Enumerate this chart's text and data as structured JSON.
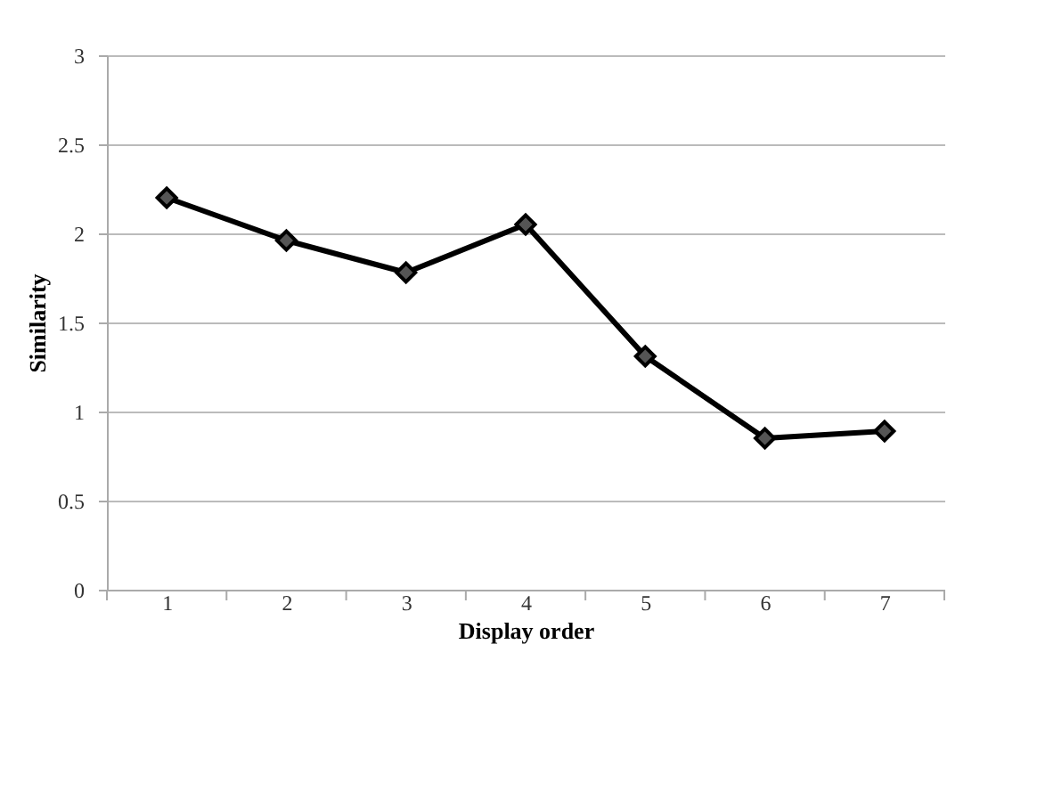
{
  "chart_data": {
    "type": "line",
    "xlabel": "Display order",
    "ylabel": "Similarity",
    "categories": [
      "1",
      "2",
      "3",
      "4",
      "5",
      "6",
      "7"
    ],
    "series": [
      {
        "color": "#000000",
        "values": [
          2.2,
          1.96,
          1.78,
          2.05,
          1.31,
          0.85,
          0.89
        ]
      }
    ],
    "ylim": [
      0,
      3
    ],
    "yticks": [
      0,
      0.5,
      1,
      1.5,
      2,
      2.5,
      3
    ],
    "grid": "y",
    "marker": "diamond",
    "line_style": "solid"
  }
}
